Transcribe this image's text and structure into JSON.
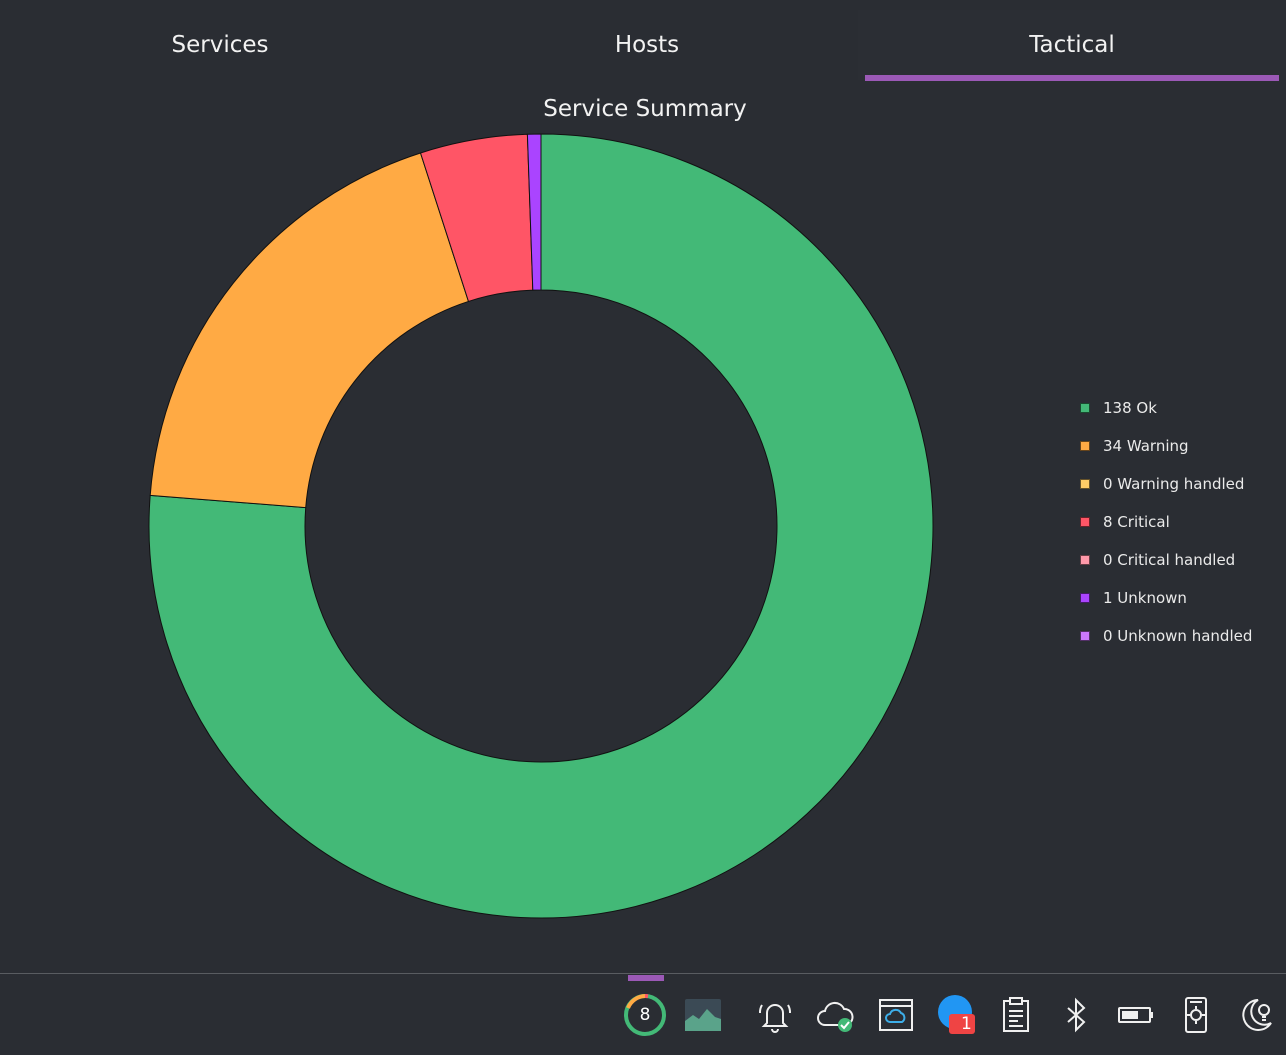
{
  "tabs": [
    {
      "label": "Services",
      "active": false
    },
    {
      "label": "Hosts",
      "active": false
    },
    {
      "label": "Tactical",
      "active": true
    }
  ],
  "chart_data": {
    "type": "pie",
    "title": "Service Summary",
    "series": [
      {
        "name": "138 Ok",
        "value": 138,
        "color": "#43b977"
      },
      {
        "name": "34 Warning",
        "value": 34,
        "color": "#ffaa44"
      },
      {
        "name": "0 Warning handled",
        "value": 0,
        "color": "#ffcc66"
      },
      {
        "name": "8 Critical",
        "value": 8,
        "color": "#ff5566"
      },
      {
        "name": "0 Critical handled",
        "value": 0,
        "color": "#ff99aa"
      },
      {
        "name": "1 Unknown",
        "value": 1,
        "color": "#aa44ff"
      },
      {
        "name": "0 Unknown handled",
        "value": 0,
        "color": "#cc77ff"
      }
    ],
    "legend_position": "right",
    "donut": true
  },
  "taskbar": {
    "monitor_count": "8",
    "notification_badge": "1",
    "icons": [
      "service-monitor-icon",
      "system-monitor-icon",
      "notifications-icon",
      "cloud-sync-icon",
      "window-cloud-icon",
      "messenger-icon",
      "clipboard-icon",
      "bluetooth-icon",
      "battery-icon",
      "device-settings-icon",
      "night-light-icon"
    ]
  }
}
